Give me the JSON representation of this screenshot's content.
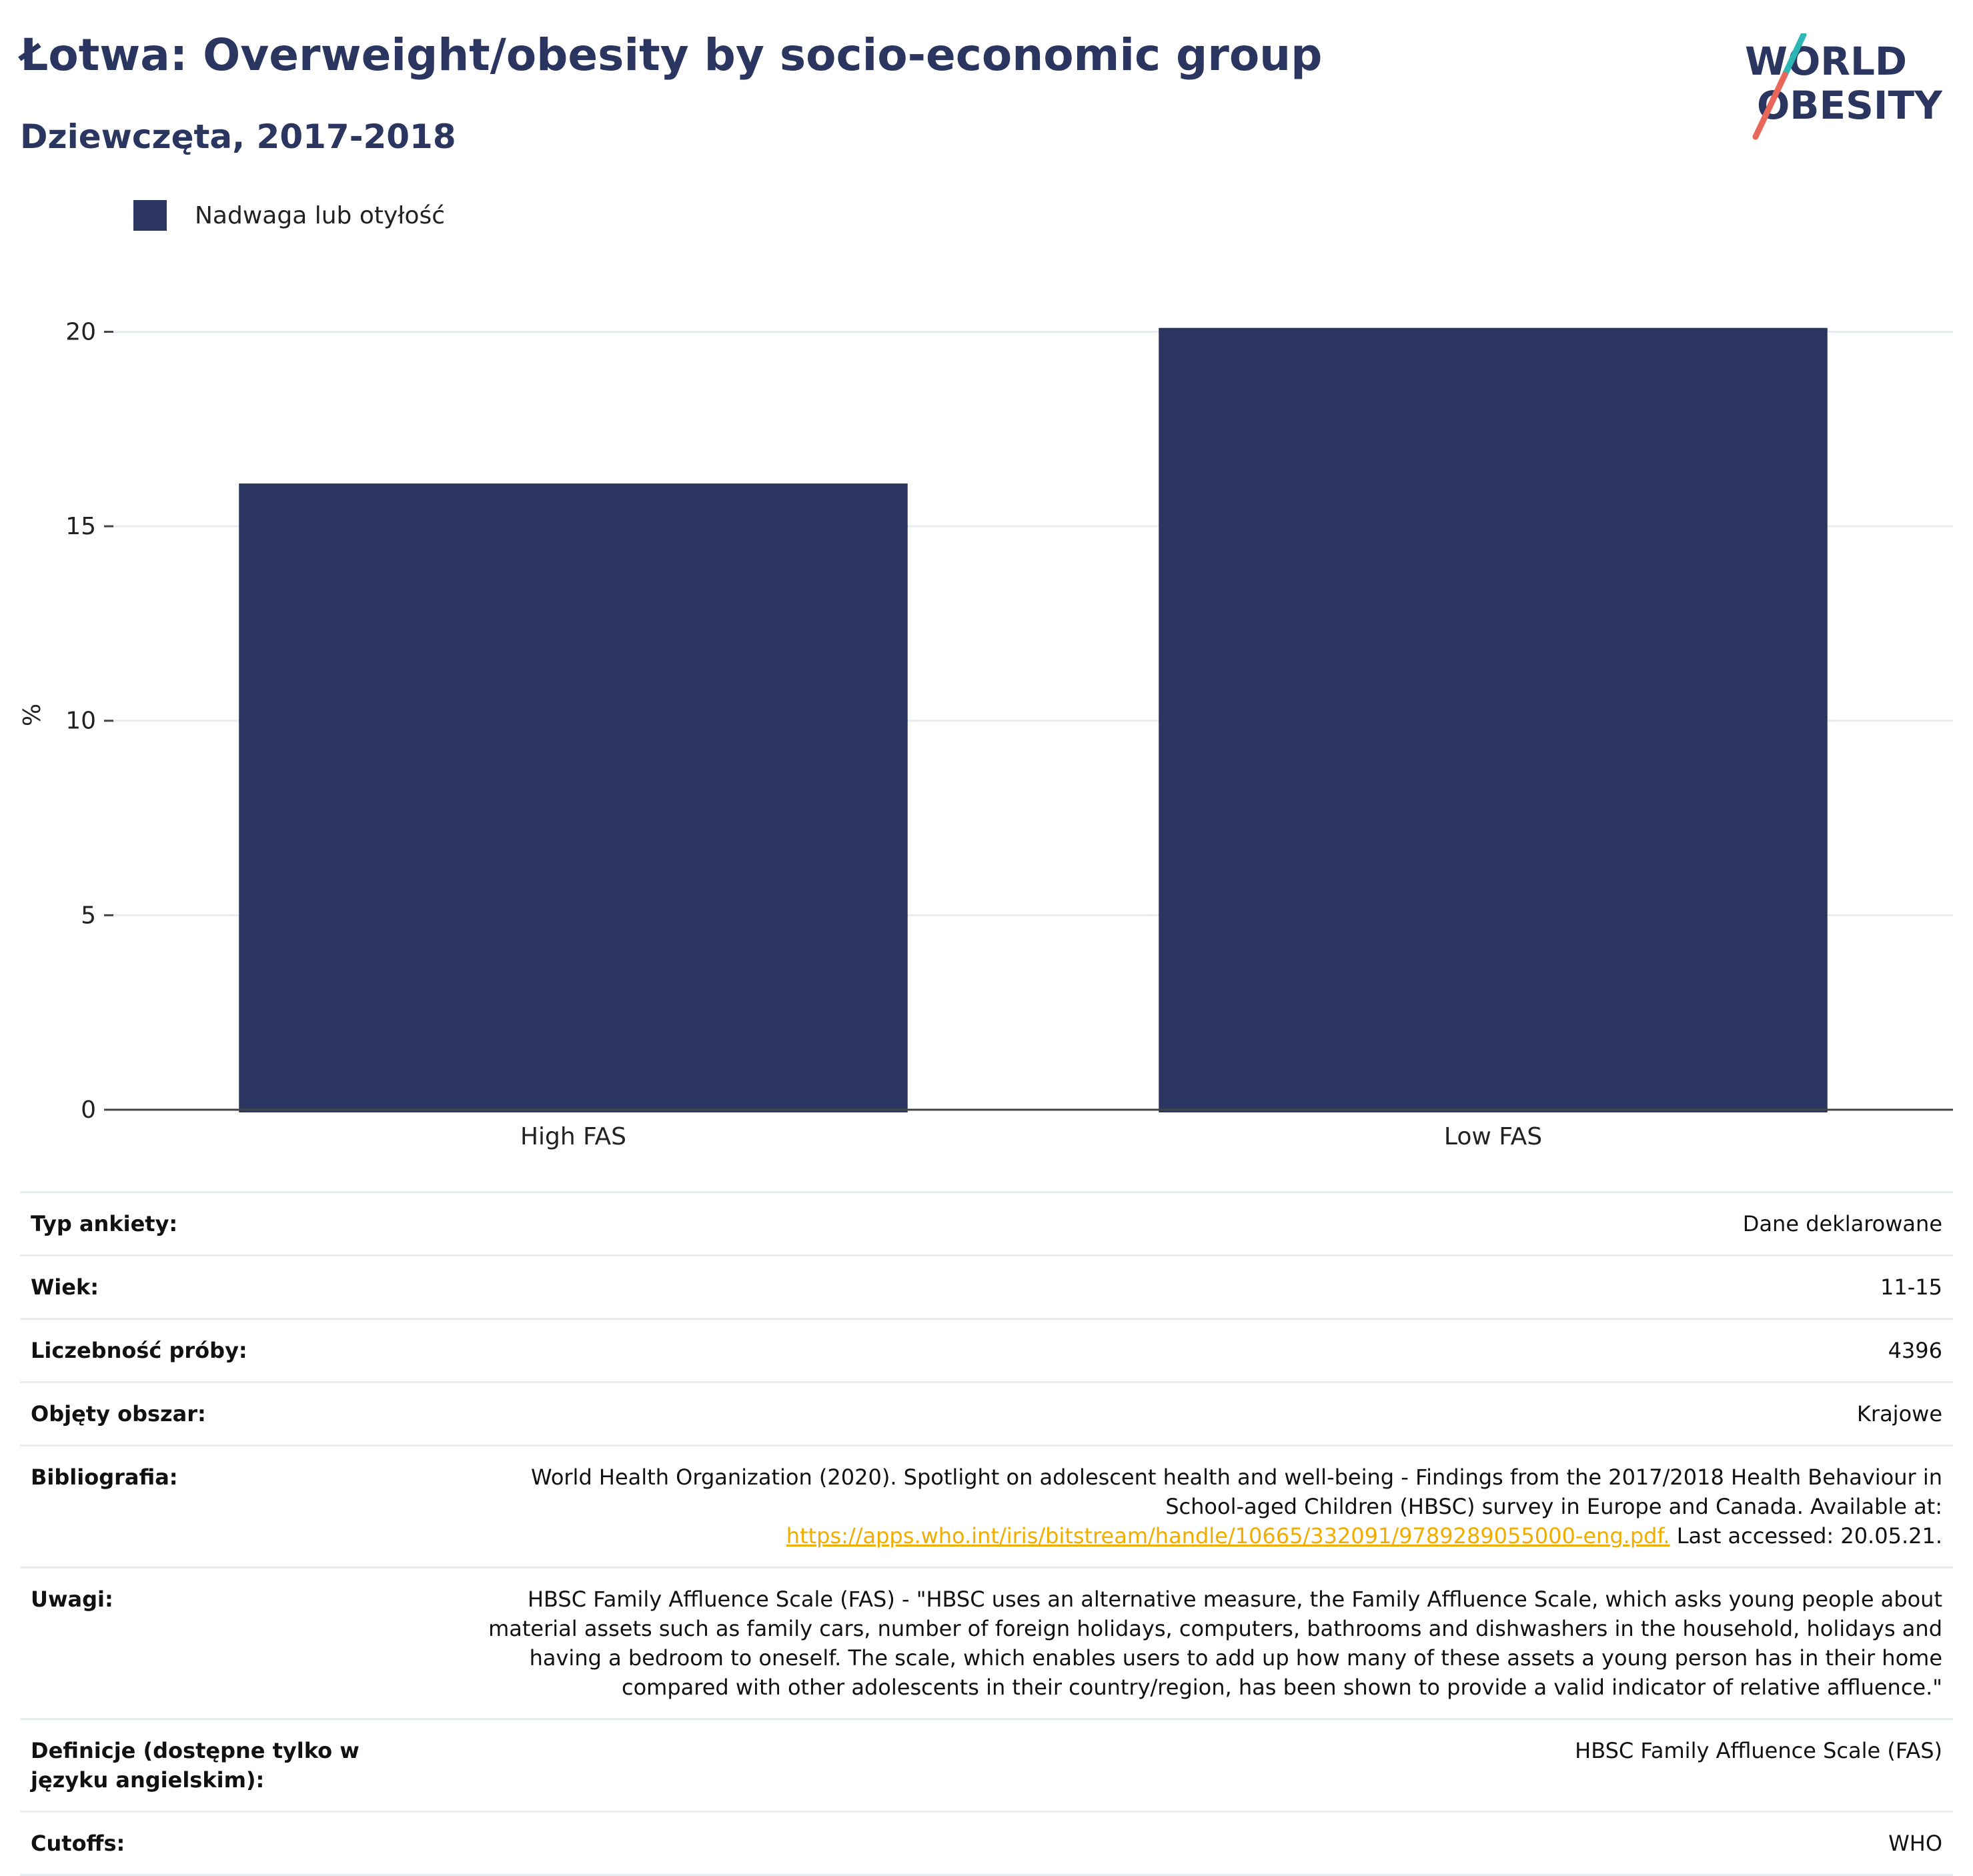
{
  "header": {
    "title": "Łotwa: Overweight/obesity by socio-economic group",
    "subtitle": "Dziewczęta, 2017-2018"
  },
  "logo": {
    "line1": "WORLD",
    "line2": "OBESITY"
  },
  "colors": {
    "bar": "#2b3660",
    "accent_teal": "#2bb7b3",
    "accent_red": "#e8665a",
    "link": "#f0ad00"
  },
  "chart_data": {
    "type": "bar",
    "categories": [
      "High FAS",
      "Low FAS"
    ],
    "series": [
      {
        "name": "Nadwaga lub otyłość",
        "values": [
          16.1,
          20.1
        ]
      }
    ],
    "ylabel": "%",
    "ylim": [
      0,
      20.3
    ],
    "yticks": [
      0,
      5,
      10,
      15,
      20
    ],
    "grid": true,
    "legend_position": "top-left"
  },
  "info": {
    "rows": [
      {
        "key": "Typ ankiety:",
        "value": "Dane deklarowane"
      },
      {
        "key": "Wiek:",
        "value": "11-15"
      },
      {
        "key": "Liczebność próby:",
        "value": "4396"
      },
      {
        "key": "Objęty obszar:",
        "value": "Krajowe"
      }
    ],
    "bibliography": {
      "key": "Bibliografia:",
      "text": "World Health Organization (2020). Spotlight on adolescent health and well-being - Findings from the 2017/2018 Health Behaviour in School-aged Children (HBSC) survey in Europe and Canada. Available at:",
      "link": "https://apps.who.int/iris/bitstream/handle/10665/332091/9789289055000-eng.pdf.",
      "after": "Last accessed: 20.05.21."
    },
    "notes": {
      "key": "Uwagi:",
      "value": "HBSC Family Affluence Scale (FAS) - \"HBSC uses an alternative measure, the Family Affluence Scale, which asks young people about material assets such as family cars, number of foreign holidays, computers, bathrooms and dishwashers in the household, holidays and having a bedroom to oneself. The scale, which enables users to add up how many of these assets a young person has in their home compared with other adolescents in their country/region, has been shown to provide a valid indicator of relative affluence.\""
    },
    "definitions": {
      "key": "Definicje (dostępne tylko w języku angielskim):",
      "value": "HBSC Family Affluence Scale (FAS)"
    },
    "cutoffs": {
      "key": "Cutoffs:",
      "value": "WHO"
    }
  }
}
